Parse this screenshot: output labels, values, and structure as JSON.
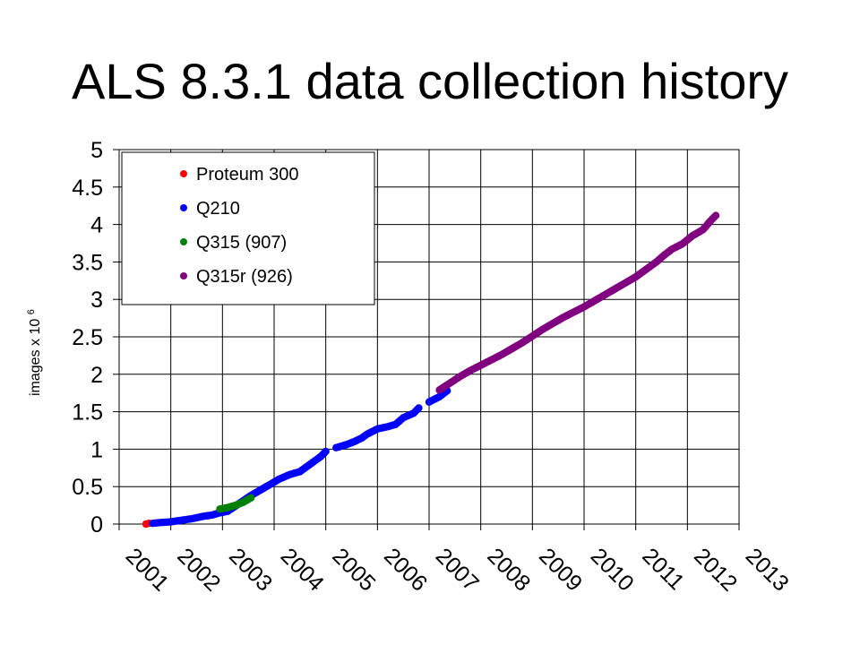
{
  "title": "ALS 8.3.1 data collection history",
  "chart_data": {
    "type": "scatter",
    "title": "ALS 8.3.1 data collection history",
    "xlabel": "",
    "ylabel": "images x 10",
    "ylabel_exponent": "6",
    "xlim": [
      2001,
      2013
    ],
    "ylim": [
      0,
      5
    ],
    "x_ticks": [
      "2001",
      "2002",
      "2003",
      "2004",
      "2005",
      "2006",
      "2007",
      "2008",
      "2009",
      "2010",
      "2011",
      "2012",
      "2013"
    ],
    "y_ticks": [
      "0",
      "0.5",
      "1",
      "1.5",
      "2",
      "2.5",
      "3",
      "3.5",
      "4",
      "4.5",
      "5"
    ],
    "grid": true,
    "legend_position": "top-left",
    "series": [
      {
        "name": "Proteum 300",
        "color": "#ff0000",
        "x": [
          2001.52,
          2001.58
        ],
        "y": [
          0.0,
          0.01
        ]
      },
      {
        "name": "Q210",
        "color": "#0000ff",
        "x": [
          2001.65,
          2001.8,
          2002.0,
          2002.2,
          2002.4,
          2002.6,
          2002.8,
          2002.95,
          2003.1,
          2003.55,
          2003.7,
          2003.9,
          2004.1,
          2004.3,
          2004.5,
          2004.7,
          2004.9,
          2005.0,
          2005.2,
          2005.25,
          2005.4,
          2005.55,
          2005.7,
          2005.8,
          2006.0,
          2006.2,
          2006.35,
          2006.5,
          2006.7,
          2006.8,
          2007.0,
          2007.2,
          2007.35
        ],
        "y": [
          0.01,
          0.02,
          0.03,
          0.05,
          0.07,
          0.1,
          0.12,
          0.15,
          0.17,
          0.38,
          0.44,
          0.52,
          0.6,
          0.66,
          0.7,
          0.8,
          0.9,
          0.97,
          1.02,
          1.03,
          1.06,
          1.1,
          1.15,
          1.2,
          1.27,
          1.3,
          1.33,
          1.42,
          1.48,
          1.55,
          1.63,
          1.7,
          1.78
        ]
      },
      {
        "name": "Q315 (907)",
        "color": "#008000",
        "x": [
          2002.95,
          2003.1,
          2003.25,
          2003.4,
          2003.55
        ],
        "y": [
          0.2,
          0.22,
          0.25,
          0.29,
          0.35
        ]
      },
      {
        "name": "Q315r (926)",
        "color": "#800080",
        "x": [
          2007.2,
          2007.4,
          2007.6,
          2007.8,
          2008.0,
          2008.2,
          2008.4,
          2008.6,
          2008.8,
          2009.0,
          2009.2,
          2009.4,
          2009.6,
          2009.8,
          2010.0,
          2010.2,
          2010.4,
          2010.6,
          2010.8,
          2011.0,
          2011.2,
          2011.4,
          2011.55,
          2011.7,
          2011.9,
          2012.1,
          2012.3,
          2012.45,
          2012.55
        ],
        "y": [
          1.79,
          1.88,
          1.97,
          2.05,
          2.12,
          2.19,
          2.26,
          2.34,
          2.42,
          2.51,
          2.6,
          2.68,
          2.76,
          2.83,
          2.9,
          2.98,
          3.06,
          3.14,
          3.22,
          3.3,
          3.4,
          3.5,
          3.59,
          3.67,
          3.74,
          3.85,
          3.93,
          4.05,
          4.12
        ]
      }
    ]
  }
}
